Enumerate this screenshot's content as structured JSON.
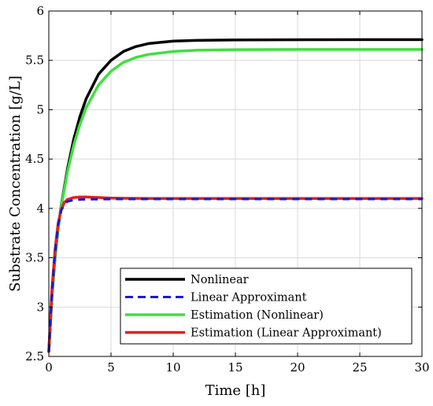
{
  "chart_data": {
    "type": "line",
    "xlabel": "Time [h]",
    "ylabel": "Substrate Concentration [g/L]",
    "xlim": [
      0,
      30
    ],
    "ylim": [
      2.5,
      6
    ],
    "xticks": [
      0,
      5,
      10,
      15,
      20,
      25,
      30
    ],
    "xtick_labels": [
      "0",
      "5",
      "10",
      "15",
      "20",
      "25",
      "30"
    ],
    "yticks": [
      2.5,
      3,
      3.5,
      4,
      4.5,
      5,
      5.5,
      6
    ],
    "ytick_labels": [
      "2.5",
      "3",
      "3.5",
      "4",
      "4.5",
      "5",
      "5.5",
      "6"
    ],
    "grid": true,
    "legend_position": "bottom-right",
    "series": [
      {
        "name": "Nonlinear",
        "color": "#000000",
        "style": "solid",
        "x": [
          0,
          0.25,
          0.5,
          0.75,
          1,
          1.5,
          2,
          2.5,
          3,
          4,
          5,
          6,
          7,
          8,
          10,
          12,
          15,
          20,
          25,
          30
        ],
        "y": [
          2.55,
          3.1,
          3.5,
          3.8,
          4.03,
          4.4,
          4.7,
          4.93,
          5.11,
          5.36,
          5.5,
          5.59,
          5.64,
          5.67,
          5.695,
          5.703,
          5.707,
          5.709,
          5.71,
          5.71
        ]
      },
      {
        "name": "Linear Approximant",
        "color": "#1a1ad6",
        "style": "dashed",
        "x": [
          0,
          0.25,
          0.5,
          0.75,
          1,
          1.25,
          1.5,
          2,
          2.5,
          3,
          4,
          5,
          10,
          20,
          30
        ],
        "y": [
          2.55,
          3.15,
          3.55,
          3.83,
          3.98,
          4.04,
          4.07,
          4.085,
          4.09,
          4.092,
          4.093,
          4.094,
          4.095,
          4.095,
          4.095
        ]
      },
      {
        "name": "Estimation (Nonlinear)",
        "color": "#3ee03e",
        "style": "solid",
        "x": [
          0,
          0.25,
          0.5,
          0.75,
          1,
          1.5,
          2,
          2.5,
          3,
          4,
          5,
          6,
          7,
          8,
          10,
          12,
          15,
          20,
          25,
          30
        ],
        "y": [
          2.55,
          3.12,
          3.52,
          3.81,
          4.02,
          4.37,
          4.64,
          4.85,
          5.02,
          5.25,
          5.39,
          5.48,
          5.53,
          5.56,
          5.59,
          5.603,
          5.608,
          5.61,
          5.61,
          5.61
        ]
      },
      {
        "name": "Estimation (Linear Approximant)",
        "color": "#e81c1c",
        "style": "solid",
        "x": [
          0,
          0.25,
          0.5,
          0.75,
          1,
          1.25,
          1.5,
          2,
          2.5,
          3,
          3.5,
          4,
          5,
          6,
          8,
          10,
          15,
          20,
          30
        ],
        "y": [
          2.55,
          3.18,
          3.58,
          3.85,
          3.99,
          4.06,
          4.09,
          4.11,
          4.115,
          4.115,
          4.112,
          4.11,
          4.105,
          4.102,
          4.1,
          4.1,
          4.1,
          4.1,
          4.1
        ]
      }
    ]
  }
}
